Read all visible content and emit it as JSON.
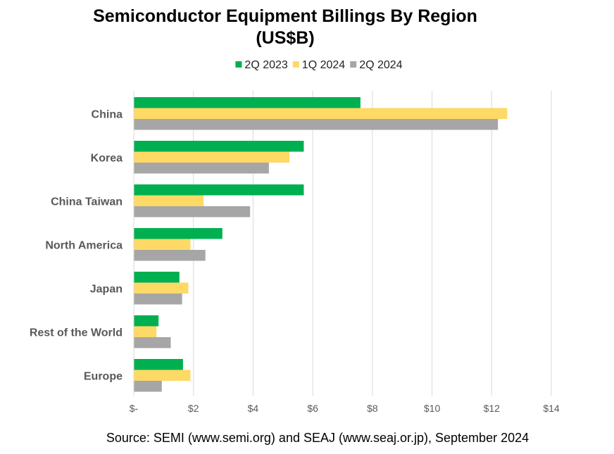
{
  "chart_data": {
    "type": "bar",
    "orientation": "horizontal",
    "title_line1": "Semiconductor Equipment Billings By Region",
    "title_line2": "(US$B)",
    "categories": [
      "China",
      "Korea",
      "China Taiwan",
      "North America",
      "Japan",
      "Rest of the World",
      "Europe"
    ],
    "series": [
      {
        "name": "2Q 2023",
        "color": "#00B050",
        "values": [
          7.6,
          5.7,
          5.7,
          2.97,
          1.53,
          0.83,
          1.65
        ]
      },
      {
        "name": "1Q 2024",
        "color": "#FFD966",
        "values": [
          12.52,
          5.22,
          2.34,
          1.9,
          1.83,
          0.76,
          1.9
        ]
      },
      {
        "name": "2Q 2024",
        "color": "#A6A6A6",
        "values": [
          12.21,
          4.53,
          3.9,
          2.4,
          1.62,
          1.24,
          0.94
        ]
      }
    ],
    "xlim": [
      0,
      14
    ],
    "xticks": [
      0,
      2,
      4,
      6,
      8,
      10,
      12,
      14
    ],
    "xtick_labels": [
      "$-",
      "$2",
      "$4",
      "$6",
      "$8",
      "$10",
      "$12",
      "$14"
    ],
    "grid": true,
    "legend_position": "top",
    "source": "Source: SEMI (www.semi.org) and SEAJ (www.seaj.or.jp), September 2024"
  }
}
